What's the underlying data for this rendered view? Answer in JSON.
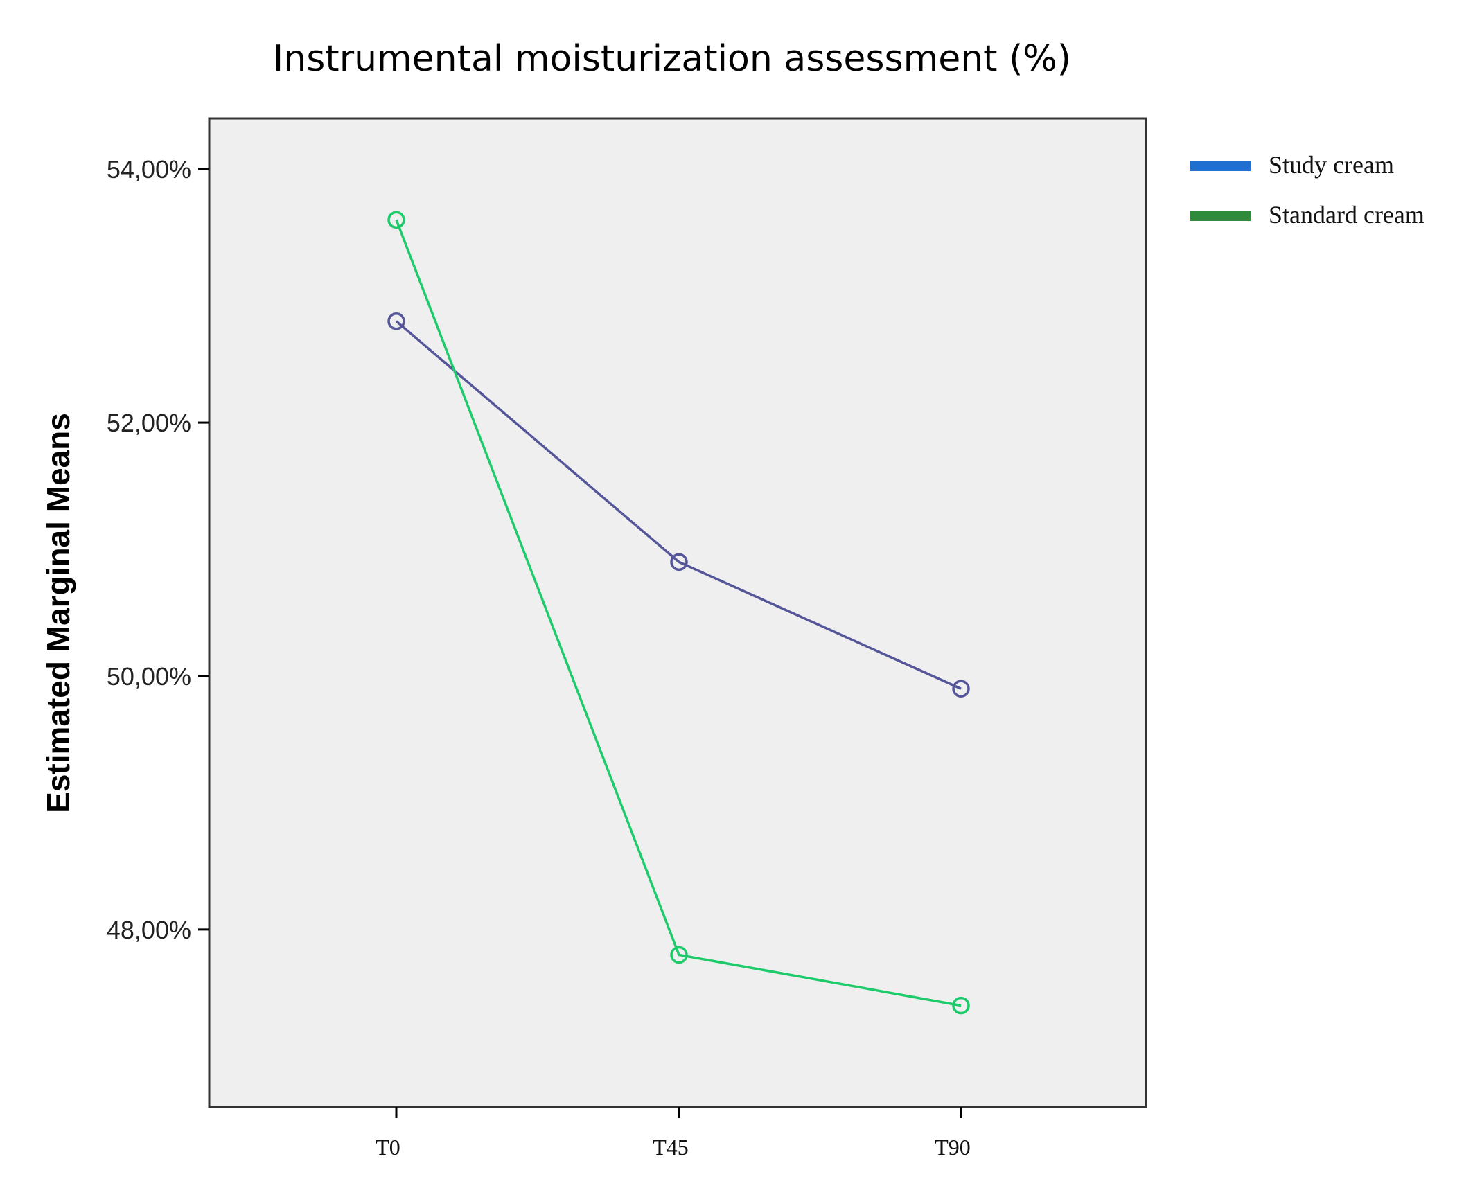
{
  "chart_data": {
    "type": "line",
    "title": "Instrumental moisturization assessment (%)",
    "xlabel": "",
    "ylabel": "Estimated Marginal Means",
    "categories": [
      "T0",
      "T45",
      "T90"
    ],
    "y_ticks": [
      {
        "value": 48,
        "label": "48,00%"
      },
      {
        "value": 50,
        "label": "50,00%"
      },
      {
        "value": 52,
        "label": "52,00%"
      },
      {
        "value": 54,
        "label": "54,00%"
      }
    ],
    "ylim": [
      46.6,
      54.4
    ],
    "grid": false,
    "legend_position": "right",
    "series": [
      {
        "name": "Study cream",
        "values": [
          52.8,
          50.9,
          49.9
        ],
        "line_color": "#55559a",
        "legend_color": "#1f6fd0"
      },
      {
        "name": "Standard cream",
        "values": [
          53.6,
          47.8,
          47.4
        ],
        "line_color": "#1ecb6a",
        "legend_color": "#2e8b3a"
      }
    ],
    "colors": {
      "plot_background": "#efefef",
      "axis": "#000000"
    }
  }
}
